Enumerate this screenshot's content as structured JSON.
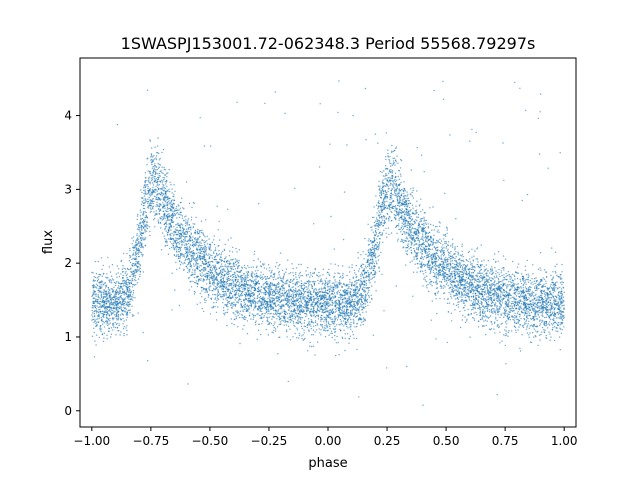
{
  "chart_data": {
    "type": "scatter",
    "title": "1SWASPJ153001.72-062348.3 Period 55568.79297s",
    "xlabel": "phase",
    "ylabel": "flux",
    "xlim": [
      -1.05,
      1.05
    ],
    "ylim": [
      -0.22,
      4.78
    ],
    "x_ticks": [
      -1.0,
      -0.75,
      -0.5,
      -0.25,
      0.0,
      0.25,
      0.5,
      0.75,
      1.0
    ],
    "x_tick_labels": [
      "−1.00",
      "−0.75",
      "−0.50",
      "−0.25",
      "0.00",
      "0.25",
      "0.50",
      "0.75",
      "1.00"
    ],
    "y_ticks": [
      0,
      1,
      2,
      3,
      4
    ],
    "y_tick_labels": [
      "0",
      "1",
      "2",
      "3",
      "4"
    ],
    "grid": false,
    "legend": "none",
    "point_color": "#1f77b4",
    "series": [
      {
        "phase": [
          -1.0,
          -0.95,
          -0.9,
          -0.85,
          -0.8,
          -0.775,
          -0.75,
          -0.725,
          -0.7,
          -0.65,
          -0.6,
          -0.55,
          -0.5,
          -0.45,
          -0.4,
          -0.35,
          -0.3,
          -0.25,
          -0.2,
          -0.15,
          -0.1,
          -0.05,
          0.0,
          0.05,
          0.1,
          0.15,
          0.2,
          0.225,
          0.25,
          0.275,
          0.3,
          0.35,
          0.4,
          0.45,
          0.5,
          0.55,
          0.6,
          0.65,
          0.7,
          0.75,
          0.8,
          0.85,
          0.9,
          0.95,
          1.0
        ],
        "flux": [
          1.5,
          1.45,
          1.45,
          1.6,
          2.2,
          2.7,
          3.0,
          3.05,
          2.85,
          2.5,
          2.25,
          2.05,
          1.9,
          1.8,
          1.7,
          1.62,
          1.56,
          1.52,
          1.49,
          1.47,
          1.45,
          1.44,
          1.45,
          1.44,
          1.45,
          1.6,
          2.2,
          2.7,
          3.0,
          3.05,
          2.85,
          2.5,
          2.25,
          2.05,
          1.9,
          1.8,
          1.7,
          1.62,
          1.56,
          1.52,
          1.49,
          1.47,
          1.45,
          1.44,
          1.45
        ]
      }
    ]
  }
}
